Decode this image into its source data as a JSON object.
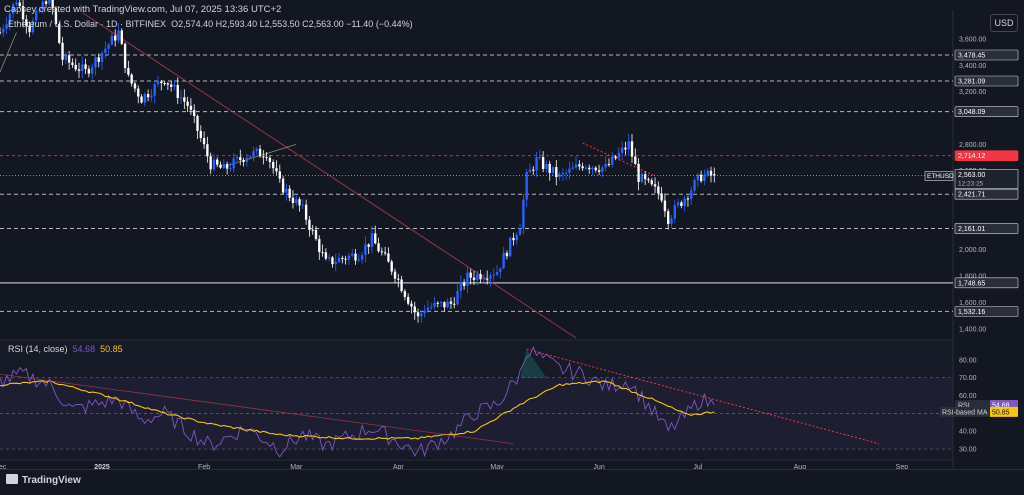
{
  "header": {
    "created": "Capsey created with TradingView.com, Jul 07, 2025 13:36 UTC+2",
    "symbol": "Ethereum / U.S. Dollar · 1D · BITFINEX",
    "ohlc": "O2,574.40  H2,593.40  L2,553.50  C2,563.00  −11.40 (−0.44%)",
    "rsi_title": "RSI (14, close)",
    "rsi_value": "54.68",
    "rsi_ma_value": "50.85"
  },
  "currency_button": "USD",
  "footer": {
    "brand": "TradingView"
  },
  "colors": {
    "bg": "#131722",
    "up": "#2962ff",
    "down": "#ffffff",
    "rsi": "#7e57c2",
    "rsi_ma": "#f5c518",
    "red_label": "#f23645",
    "trend": "#b23a48"
  },
  "chart_data": [
    {
      "type": "candlestick",
      "symbol_label": "ETHUSD",
      "x_ticks": [
        "Dec",
        "2025",
        "Feb",
        "Mar",
        "Apr",
        "May",
        "Jun",
        "Jul",
        "Aug",
        "Sep"
      ],
      "x_range": [
        "2024-12-01",
        "2025-09-15"
      ],
      "y_range": [
        1330,
        3820
      ],
      "y_ticks": [
        "3,600.00",
        "3,400.00",
        "3,200.00",
        "2,800.00",
        "2,600.00",
        "2,000.00",
        "1,800.00",
        "1,600.00",
        "1,400.00"
      ],
      "horizontal_levels": [
        {
          "value": 3478.45,
          "label": "3,478.45",
          "style": "dashed"
        },
        {
          "value": 3281.09,
          "label": "3,281.09",
          "style": "dashed"
        },
        {
          "value": 3048.09,
          "label": "3,048.09",
          "style": "dashed"
        },
        {
          "value": 2714.12,
          "label": "2,714.12",
          "style": "red-dashed"
        },
        {
          "value": 2421.71,
          "label": "2,421.71",
          "style": "dashed"
        },
        {
          "value": 2161.01,
          "label": "2,161.01",
          "style": "dashed"
        },
        {
          "value": 1748.65,
          "label": "1,748.65",
          "style": "solid"
        },
        {
          "value": 1532.16,
          "label": "1,532.16",
          "style": "dashed"
        }
      ],
      "last_price": {
        "value": 2563.0,
        "label": "2,563.00",
        "countdown": "12:23:25"
      },
      "close_path": [
        [
          "2024-12-01",
          3650
        ],
        [
          "2024-12-06",
          3900
        ],
        [
          "2024-12-10",
          3680
        ],
        [
          "2024-12-16",
          3950
        ],
        [
          "2024-12-20",
          3450
        ],
        [
          "2024-12-27",
          3350
        ],
        [
          "2025-01-06",
          3650
        ],
        [
          "2025-01-09",
          3300
        ],
        [
          "2025-01-13",
          3150
        ],
        [
          "2025-01-20",
          3300
        ],
        [
          "2025-01-27",
          3100
        ],
        [
          "2025-02-03",
          2650
        ],
        [
          "2025-02-07",
          2610
        ],
        [
          "2025-02-14",
          2720
        ],
        [
          "2025-02-20",
          2740
        ],
        [
          "2025-02-24",
          2500
        ],
        [
          "2025-03-03",
          2300
        ],
        [
          "2025-03-10",
          1900
        ],
        [
          "2025-03-20",
          1970
        ],
        [
          "2025-03-24",
          2080
        ],
        [
          "2025-03-31",
          1820
        ],
        [
          "2025-04-07",
          1480
        ],
        [
          "2025-04-09",
          1560
        ],
        [
          "2025-04-17",
          1590
        ],
        [
          "2025-04-22",
          1790
        ],
        [
          "2025-05-01",
          1840
        ],
        [
          "2025-05-08",
          2200
        ],
        [
          "2025-05-10",
          2550
        ],
        [
          "2025-05-13",
          2680
        ],
        [
          "2025-05-20",
          2550
        ],
        [
          "2025-05-27",
          2650
        ],
        [
          "2025-06-03",
          2620
        ],
        [
          "2025-06-10",
          2800
        ],
        [
          "2025-06-13",
          2550
        ],
        [
          "2025-06-20",
          2410
        ],
        [
          "2025-06-22",
          2240
        ],
        [
          "2025-06-28",
          2430
        ],
        [
          "2025-07-02",
          2560
        ],
        [
          "2025-07-06",
          2563
        ]
      ]
    },
    {
      "type": "line",
      "indicator": "RSI (14, close)",
      "y_range": [
        25,
        90
      ],
      "y_ticks": [
        "80.00",
        "70.00",
        "60.00",
        "50.00",
        "40.00",
        "30.00"
      ],
      "bands": {
        "upper": 70,
        "middle": 50,
        "lower": 30
      },
      "series": [
        {
          "name": "RSI",
          "last_label": "54.68",
          "values": [
            [
              "2024-12-01",
              68
            ],
            [
              "2024-12-08",
              72
            ],
            [
              "2024-12-16",
              66
            ],
            [
              "2024-12-23",
              52
            ],
            [
              "2025-01-06",
              58
            ],
            [
              "2025-01-13",
              46
            ],
            [
              "2025-01-20",
              50
            ],
            [
              "2025-01-27",
              40
            ],
            [
              "2025-02-03",
              32
            ],
            [
              "2025-02-14",
              42
            ],
            [
              "2025-02-24",
              30
            ],
            [
              "2025-03-03",
              38
            ],
            [
              "2025-03-10",
              32
            ],
            [
              "2025-03-24",
              42
            ],
            [
              "2025-04-07",
              28
            ],
            [
              "2025-04-17",
              38
            ],
            [
              "2025-04-24",
              50
            ],
            [
              "2025-05-01",
              55
            ],
            [
              "2025-05-08",
              72
            ],
            [
              "2025-05-10",
              86
            ],
            [
              "2025-05-20",
              75
            ],
            [
              "2025-05-27",
              72
            ],
            [
              "2025-06-03",
              65
            ],
            [
              "2025-06-10",
              68
            ],
            [
              "2025-06-20",
              45
            ],
            [
              "2025-06-22",
              40
            ],
            [
              "2025-06-28",
              50
            ],
            [
              "2025-07-02",
              58
            ],
            [
              "2025-07-06",
              54.68
            ]
          ]
        },
        {
          "name": "RSI-based MA",
          "last_label": "50.85",
          "values": [
            [
              "2024-12-01",
              66
            ],
            [
              "2024-12-16",
              68
            ],
            [
              "2025-01-06",
              58
            ],
            [
              "2025-01-20",
              50
            ],
            [
              "2025-02-03",
              44
            ],
            [
              "2025-02-24",
              38
            ],
            [
              "2025-03-17",
              36
            ],
            [
              "2025-04-07",
              36
            ],
            [
              "2025-04-24",
              40
            ],
            [
              "2025-05-08",
              55
            ],
            [
              "2025-05-20",
              66
            ],
            [
              "2025-06-03",
              68
            ],
            [
              "2025-06-17",
              58
            ],
            [
              "2025-06-28",
              49
            ],
            [
              "2025-07-06",
              50.85
            ]
          ]
        }
      ]
    }
  ]
}
